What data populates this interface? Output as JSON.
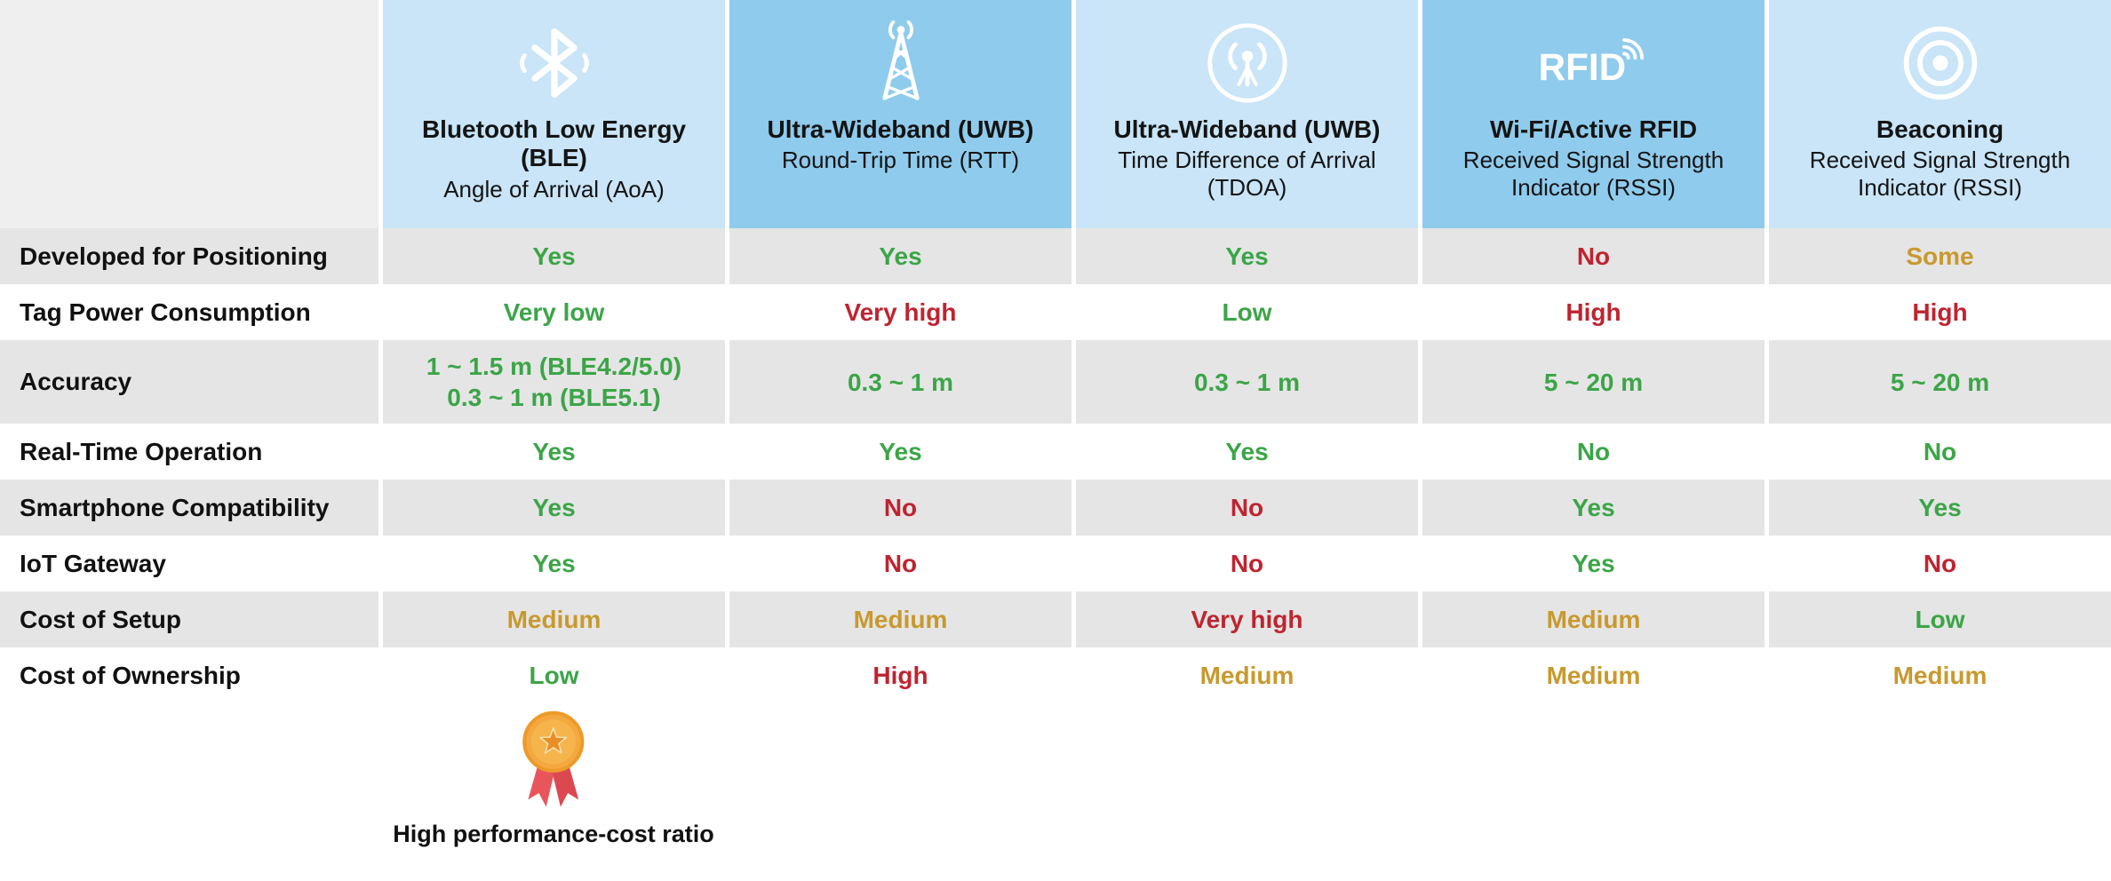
{
  "chart_data": {
    "type": "table",
    "columns": [
      {
        "key": "ble",
        "icon": "bluetooth-icon",
        "title": "Bluetooth Low Energy (BLE)",
        "subtitle": "Angle of Arrival (AoA)",
        "shade": "light"
      },
      {
        "key": "uwb-rtt",
        "icon": "radio-tower-icon",
        "title": "Ultra-Wideband (UWB)",
        "subtitle": "Round-Trip Time (RTT)",
        "shade": "dark"
      },
      {
        "key": "uwb-tdoa",
        "icon": "broadcast-circle-icon",
        "title": "Ultra-Wideband (UWB)",
        "subtitle": "Time Difference of Arrival (TDOA)",
        "shade": "light"
      },
      {
        "key": "wifi-rfid",
        "icon": "rfid-icon",
        "title": "Wi-Fi/Active RFID",
        "subtitle": "Received Signal Strength Indicator (RSSI)",
        "shade": "dark"
      },
      {
        "key": "beaconing",
        "icon": "beacon-icon",
        "title": "Beaconing",
        "subtitle": "Received Signal Strength Indicator (RSSI)",
        "shade": "light"
      }
    ],
    "rows": [
      {
        "label": "Developed for Positioning",
        "cells": [
          {
            "text": "Yes",
            "color": "green"
          },
          {
            "text": "Yes",
            "color": "green"
          },
          {
            "text": "Yes",
            "color": "green"
          },
          {
            "text": "No",
            "color": "red"
          },
          {
            "text": "Some",
            "color": "gold"
          }
        ]
      },
      {
        "label": "Tag Power Consumption",
        "cells": [
          {
            "text": "Very low",
            "color": "green"
          },
          {
            "text": "Very high",
            "color": "red"
          },
          {
            "text": "Low",
            "color": "green"
          },
          {
            "text": "High",
            "color": "red"
          },
          {
            "text": "High",
            "color": "red"
          }
        ]
      },
      {
        "label": "Accuracy",
        "cells": [
          {
            "text": "1 ~ 1.5 m (BLE4.2/5.0)\n0.3 ~ 1 m (BLE5.1)",
            "color": "green"
          },
          {
            "text": "0.3 ~ 1 m",
            "color": "green"
          },
          {
            "text": "0.3 ~ 1 m",
            "color": "green"
          },
          {
            "text": "5 ~ 20 m",
            "color": "green"
          },
          {
            "text": "5 ~ 20 m",
            "color": "green"
          }
        ]
      },
      {
        "label": "Real-Time Operation",
        "cells": [
          {
            "text": "Yes",
            "color": "green"
          },
          {
            "text": "Yes",
            "color": "green"
          },
          {
            "text": "Yes",
            "color": "green"
          },
          {
            "text": "No",
            "color": "green"
          },
          {
            "text": "No",
            "color": "green"
          }
        ]
      },
      {
        "label": "Smartphone Compatibility",
        "cells": [
          {
            "text": "Yes",
            "color": "green"
          },
          {
            "text": "No",
            "color": "red"
          },
          {
            "text": "No",
            "color": "red"
          },
          {
            "text": "Yes",
            "color": "green"
          },
          {
            "text": "Yes",
            "color": "green"
          }
        ]
      },
      {
        "label": "IoT Gateway",
        "cells": [
          {
            "text": "Yes",
            "color": "green"
          },
          {
            "text": "No",
            "color": "red"
          },
          {
            "text": "No",
            "color": "red"
          },
          {
            "text": "Yes",
            "color": "green"
          },
          {
            "text": "No",
            "color": "red"
          }
        ]
      },
      {
        "label": "Cost of Setup",
        "cells": [
          {
            "text": "Medium",
            "color": "gold"
          },
          {
            "text": "Medium",
            "color": "gold"
          },
          {
            "text": "Very high",
            "color": "red"
          },
          {
            "text": "Medium",
            "color": "gold"
          },
          {
            "text": "Low",
            "color": "green"
          }
        ]
      },
      {
        "label": "Cost of Ownership",
        "cells": [
          {
            "text": "Low",
            "color": "green"
          },
          {
            "text": "High",
            "color": "red"
          },
          {
            "text": "Medium",
            "color": "gold"
          },
          {
            "text": "Medium",
            "color": "gold"
          },
          {
            "text": "Medium",
            "color": "gold"
          }
        ]
      }
    ]
  },
  "footer": {
    "caption": "High performance-cost ratio",
    "icon": "medal-icon"
  },
  "colors": {
    "green": "#3BA547",
    "red": "#BE2430",
    "gold": "#C8992E",
    "header_light": "#C9E5F7",
    "header_dark": "#8FCBEC",
    "row_gray": "#E5E5E5",
    "corner_gray": "#EFEFEF"
  }
}
